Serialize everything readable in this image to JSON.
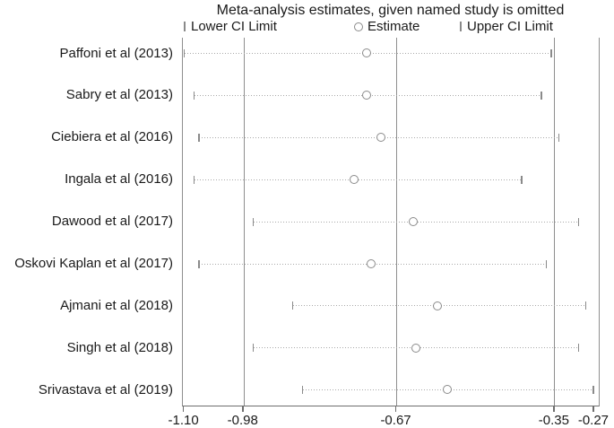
{
  "chart_data": {
    "type": "forest",
    "title": "Meta-analysis estimates, given named study is omitted",
    "legend": [
      {
        "symbol": "ci-tick-icon",
        "label": "Lower CI Limit"
      },
      {
        "symbol": "circle-icon",
        "label": "Estimate"
      },
      {
        "symbol": "ci-tick-icon",
        "label": "Upper CI Limit"
      }
    ],
    "studies": [
      "Paffoni et al (2013)",
      "Sabry et al (2013)",
      "Ciebiera et al (2016)",
      "Ingala et al (2016)",
      "Dawood et al (2017)",
      "Oskovi Kaplan et al (2017)",
      "Ajmani et al (2018)",
      "Singh et al (2018)",
      "Srivastava et al (2019)"
    ],
    "series": [
      {
        "name": "Lower CI Limit",
        "values": [
          -1.1,
          -1.08,
          -1.07,
          -1.08,
          -0.96,
          -1.07,
          -0.88,
          -0.96,
          -0.86
        ]
      },
      {
        "name": "Estimate",
        "values": [
          -0.73,
          -0.73,
          -0.7,
          -0.755,
          -0.635,
          -0.72,
          -0.585,
          -0.63,
          -0.565
        ]
      },
      {
        "name": "Upper CI Limit",
        "values": [
          -0.355,
          -0.375,
          -0.34,
          -0.415,
          -0.3,
          -0.365,
          -0.285,
          -0.3,
          -0.27
        ]
      }
    ],
    "x_axis": {
      "tick_labels": [
        "-1.10",
        "-0.98",
        "-0.67",
        "-0.35",
        "-0.27"
      ],
      "tick_values": [
        -1.1,
        -0.98,
        -0.67,
        -0.35,
        -0.27
      ],
      "gridline_values": [
        -0.98,
        -0.67,
        -0.35
      ],
      "range": [
        -1.103,
        -0.259
      ]
    },
    "layout_hints": {
      "grid": "vertical-reference-lines",
      "legend_position": "top"
    },
    "colors": {
      "text": "#1a1a1a",
      "axis_line": "#6e6e6e",
      "gridline": "#8f8f8f",
      "dotted_line": "#a9a9a9",
      "marker": "#8a8a8a",
      "background": "#ffffff"
    }
  }
}
